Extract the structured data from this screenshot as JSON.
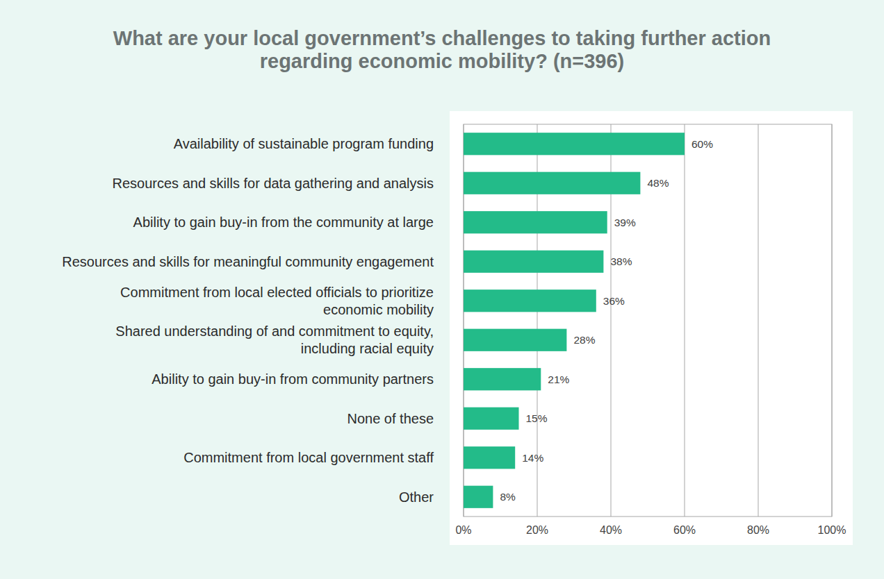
{
  "chart_data": {
    "type": "bar",
    "title": "What are your local government’s challenges to taking further action\nregarding economic mobility? (n=396)",
    "orientation": "horizontal",
    "categories": [
      "Availability of sustainable program funding",
      "Resources and skills for data gathering and analysis",
      "Ability to gain buy-in from the community at large",
      "Resources and skills for meaningful community engagement",
      "Commitment from local elected officials to prioritize\neconomic mobility",
      "Shared understanding of and commitment to equity,\nincluding racial equity",
      "Ability to gain buy-in from community partners",
      "None of these",
      "Commitment from local government staff",
      "Other"
    ],
    "values": [
      60,
      48,
      39,
      38,
      36,
      28,
      21,
      15,
      14,
      8
    ],
    "value_labels": [
      "60%",
      "48%",
      "39%",
      "38%",
      "36%",
      "28%",
      "21%",
      "15%",
      "14%",
      "8%"
    ],
    "color": "#23bb89",
    "data_labels": true,
    "grid": true,
    "xlim": [
      0,
      100
    ],
    "xticks": [
      {
        "value": 0,
        "label": "0%"
      },
      {
        "value": 20,
        "label": "20%"
      },
      {
        "value": 40,
        "label": "40%"
      },
      {
        "value": 60,
        "label": "60%"
      },
      {
        "value": 80,
        "label": "80%"
      },
      {
        "value": 100,
        "label": "100%"
      }
    ]
  }
}
